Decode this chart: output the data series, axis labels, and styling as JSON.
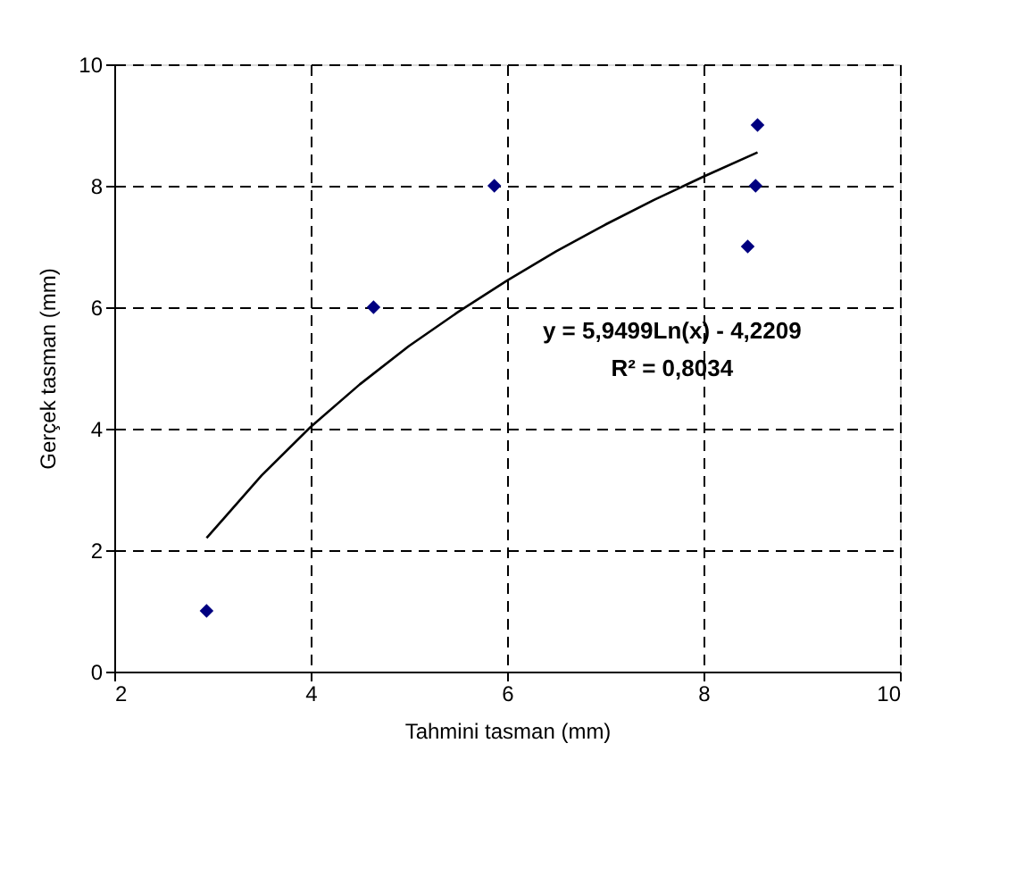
{
  "chart_data": {
    "type": "scatter",
    "xlabel": "Tahmini tasman (mm)",
    "ylabel": "Gerçek tasman (mm)",
    "xlim": [
      2,
      10
    ],
    "xticks": [
      2,
      4,
      6,
      8,
      10
    ],
    "ylim": [
      0,
      10
    ],
    "yticks": [
      0,
      2,
      4,
      6,
      8,
      10
    ],
    "grid": true,
    "marker": "diamond",
    "series": [
      {
        "color": "#000080",
        "x": [
          2.94,
          4.64,
          5.87,
          8.45,
          8.53,
          8.55
        ],
        "values": [
          1,
          6,
          8,
          7,
          8,
          9
        ]
      },
      {
        "type": "line",
        "color": "#000000",
        "line_style": "solid",
        "marker": "none",
        "x": [
          2.94,
          3.5,
          4,
          4.5,
          5,
          5.5,
          6,
          6.5,
          7,
          7.5,
          8,
          8.55
        ],
        "values": [
          2.2,
          3.23,
          4.03,
          4.73,
          5.36,
          5.92,
          6.44,
          6.92,
          7.36,
          7.77,
          8.15,
          8.55
        ]
      }
    ],
    "annotations": [
      "y = 5,9499Ln(x) - 4,2209",
      "R² = 0,8034"
    ]
  }
}
